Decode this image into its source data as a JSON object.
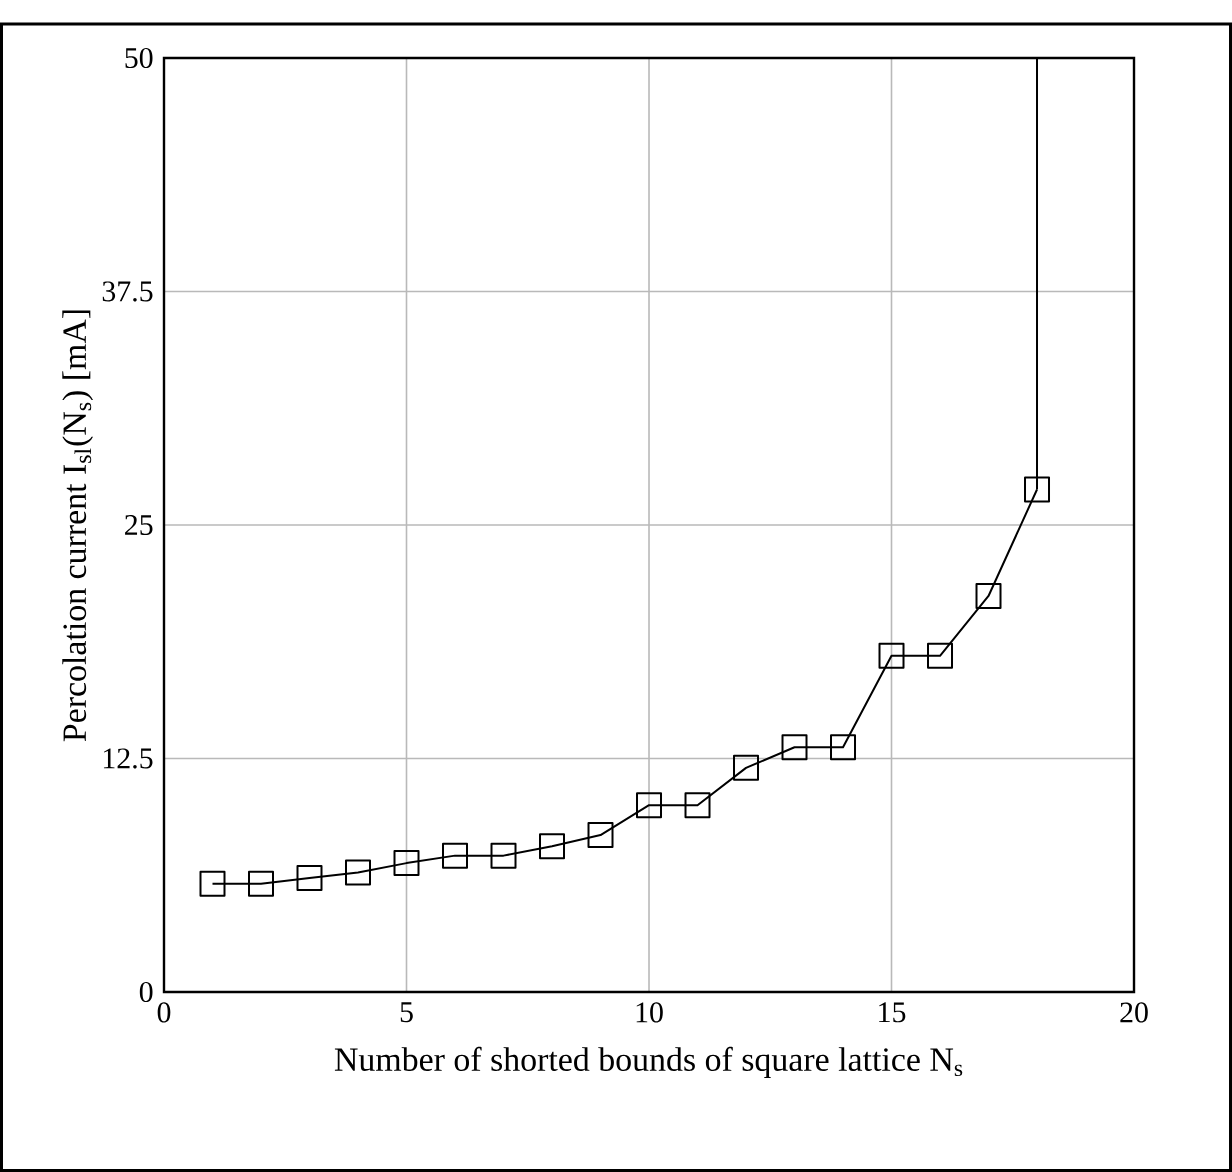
{
  "chart_data": {
    "type": "line",
    "xlabel": "Number of shorted bounds of square lattice N$_{s}$",
    "ylabel": "Percolation current I$_{sl}$(N$_{s}$)  [mA]",
    "xlim": [
      0,
      20
    ],
    "xticks": [
      0,
      5,
      10,
      15,
      20
    ],
    "ylim": [
      0,
      50
    ],
    "yticks": [
      0,
      12.5,
      25,
      37.5,
      50
    ],
    "grid": true,
    "series": [
      {
        "color": "#000000",
        "marker": "square",
        "x": [
          1,
          2,
          3,
          4,
          5,
          6,
          7,
          8,
          9,
          10,
          11,
          12,
          13,
          14,
          15,
          16,
          17,
          18
        ],
        "values": [
          5.8,
          5.8,
          6.1,
          6.4,
          6.9,
          7.3,
          7.3,
          7.8,
          8.4,
          10,
          10,
          12,
          13.1,
          13.1,
          18,
          18,
          21.2,
          26.9
        ]
      },
      {
        "color": "#000000",
        "marker": "none",
        "x": [
          18,
          18
        ],
        "values": [
          26.9,
          50
        ]
      }
    ]
  }
}
